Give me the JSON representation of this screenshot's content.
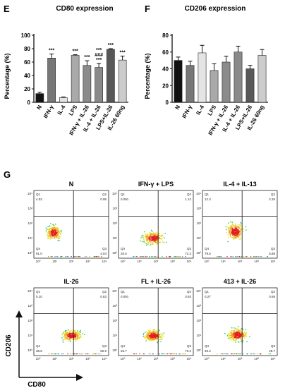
{
  "panel_letters": {
    "e": "E",
    "f": "F",
    "g": "G"
  },
  "chart_data": [
    {
      "type": "bar",
      "title": "CD80 expression",
      "ylabel": "Percentage (%)",
      "ylim": [
        0,
        100
      ],
      "yticks": [
        "0",
        "20",
        "40",
        "60",
        "80",
        "100"
      ],
      "categories": [
        "N",
        "IFN-γ",
        "IL-4",
        "LPS",
        "IFN-γ + IL-26",
        "IL-4 + IL-26",
        "LPS+IL-26",
        "IL-26 60ng"
      ],
      "values": [
        13,
        66,
        7,
        70,
        55,
        52,
        79,
        63
      ],
      "errors": [
        2,
        6,
        1,
        1,
        7,
        6,
        1,
        6
      ],
      "colors": [
        "#111111",
        "#777777",
        "#e4e4e4",
        "#a9a9a9",
        "#8b8b8b",
        "#8a8a8a",
        "#585858",
        "#cccccc"
      ],
      "annotations": [
        "",
        "***",
        "",
        "***",
        "***",
        "***\n###\n***",
        "***",
        "***"
      ]
    },
    {
      "type": "bar",
      "title": "CD206 expression",
      "ylabel": "Percentage (%)",
      "ylim": [
        0,
        80
      ],
      "yticks": [
        "0",
        "20",
        "40",
        "60",
        "80"
      ],
      "categories": [
        "N",
        "IFN-γ",
        "IL-4",
        "LPS",
        "IFN-γ + IL-26",
        "IL-4 + IL-26",
        "LPS+IL-26",
        "IL-26 60ng"
      ],
      "values": [
        50,
        44,
        59,
        38,
        48,
        60,
        40,
        56
      ],
      "errors": [
        4,
        5,
        9,
        8,
        7,
        7,
        4,
        7
      ],
      "colors": [
        "#111111",
        "#777777",
        "#e4e4e4",
        "#a9a9a9",
        "#8b8b8b",
        "#8a8a8a",
        "#585858",
        "#cccccc"
      ],
      "annotations": []
    },
    {
      "type": "scatter",
      "kind": "flow-cytometry-quadrant-plots",
      "xlabel": "CD80",
      "ylabel": "CD206",
      "plots": [
        {
          "title": "N",
          "quadrants": {
            "Q1": "4.02",
            "Q2": "0.95",
            "Q3": "4.04",
            "Q4": "91.0"
          }
        },
        {
          "title": "IFN-γ + LPS",
          "quadrants": {
            "Q1": "0.091",
            "Q2": "1.12",
            "Q3": "72.3",
            "Q4": "26.5"
          }
        },
        {
          "title": "IL-4 + IL-13",
          "quadrants": {
            "Q1": "12.3",
            "Q2": "2.26",
            "Q3": "5.86",
            "Q4": "79.6"
          }
        },
        {
          "title": "IL-26",
          "quadrants": {
            "Q1": "0.10",
            "Q2": "0.83",
            "Q3": "60.6",
            "Q4": "38.5"
          }
        },
        {
          "title": "FL + IL-26",
          "quadrants": {
            "Q1": "0.091",
            "Q2": "0.92",
            "Q3": "73.2",
            "Q4": "25.7"
          }
        },
        {
          "title": "413 + IL-26",
          "quadrants": {
            "Q1": "0.27",
            "Q2": "0.68",
            "Q3": "49.7",
            "Q4": "49.4"
          }
        }
      ],
      "quadrant_labels": [
        "Q1",
        "Q2",
        "Q3",
        "Q4"
      ],
      "axis_ticks": [
        "10⁰",
        "10¹",
        "10²",
        "10³",
        "10⁴"
      ]
    }
  ]
}
